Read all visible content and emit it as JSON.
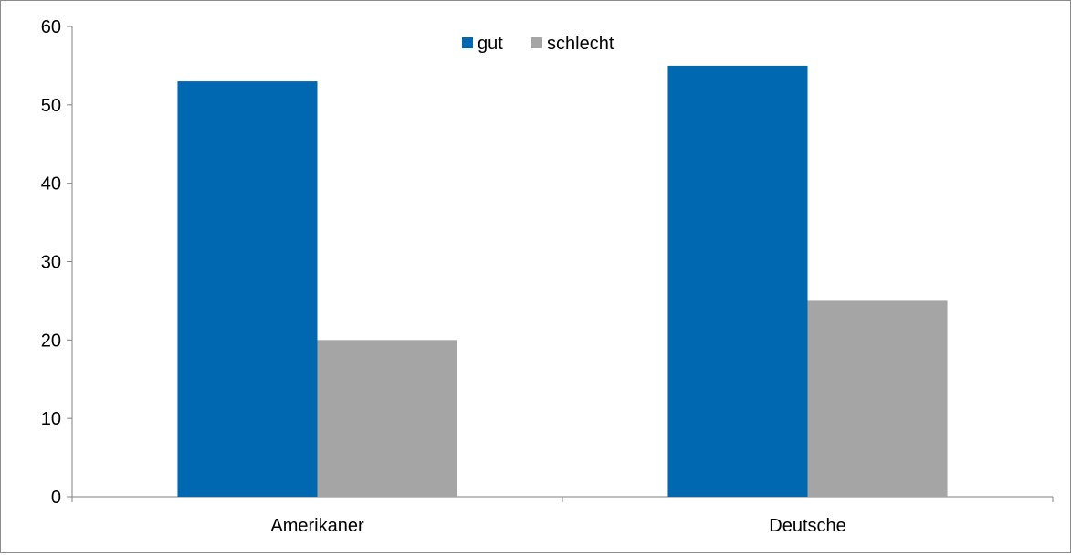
{
  "chart_data": {
    "type": "bar",
    "categories": [
      "Amerikaner",
      "Deutsche"
    ],
    "series": [
      {
        "name": "gut",
        "values": [
          53,
          55
        ],
        "color": "#0067B1"
      },
      {
        "name": "schlecht",
        "values": [
          20,
          25
        ],
        "color": "#A5A5A5"
      }
    ],
    "title": "",
    "xlabel": "",
    "ylabel": "",
    "ylim": [
      0,
      60
    ],
    "yticks": [
      "0",
      "10",
      "20",
      "30",
      "40",
      "50",
      "60"
    ],
    "grid": false,
    "legend_position": "top-center",
    "axis_color": "#808080"
  }
}
